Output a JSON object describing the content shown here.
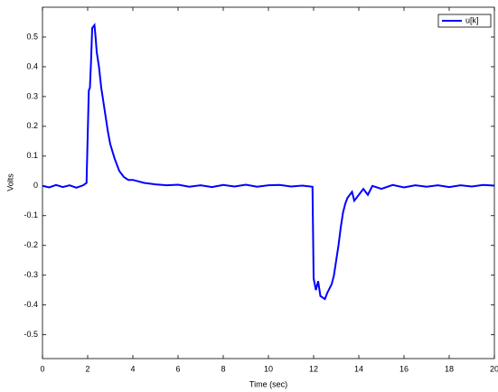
{
  "chart_data": {
    "type": "line",
    "x_label": "Time (sec)",
    "y_label": "Volts",
    "x": [
      0,
      0.3,
      0.6,
      0.9,
      1.2,
      1.5,
      1.8,
      1.95,
      2.05,
      2.1,
      2.15,
      2.2,
      2.3,
      2.35,
      2.4,
      2.5,
      2.6,
      2.7,
      2.8,
      2.9,
      3.0,
      3.2,
      3.4,
      3.6,
      3.8,
      4.0,
      4.5,
      5.0,
      5.5,
      6.0,
      6.5,
      7.0,
      7.5,
      8.0,
      8.5,
      9.0,
      9.5,
      10.0,
      10.5,
      11.0,
      11.5,
      11.95,
      12.0,
      12.1,
      12.2,
      12.3,
      12.5,
      12.6,
      12.8,
      12.9,
      13.0,
      13.1,
      13.2,
      13.3,
      13.4,
      13.5,
      13.6,
      13.7,
      13.8,
      14.0,
      14.2,
      14.4,
      14.6,
      15.0,
      15.5,
      16.0,
      16.5,
      17.0,
      17.5,
      18.0,
      18.5,
      19.0,
      19.5,
      20.0
    ],
    "series": [
      {
        "name": "u[k]",
        "color": "#0000ff",
        "values": [
          0,
          -0.005,
          0.003,
          -0.004,
          0.002,
          -0.006,
          0.002,
          0.01,
          0.32,
          0.33,
          0.42,
          0.53,
          0.54,
          0.5,
          0.45,
          0.4,
          0.33,
          0.28,
          0.23,
          0.18,
          0.14,
          0.09,
          0.05,
          0.03,
          0.02,
          0.02,
          0.01,
          0.005,
          0.002,
          0.004,
          -0.003,
          0.002,
          -0.004,
          0.003,
          -0.002,
          0.004,
          -0.003,
          0.002,
          0.003,
          -0.002,
          0.001,
          -0.003,
          -0.31,
          -0.35,
          -0.32,
          -0.37,
          -0.38,
          -0.36,
          -0.33,
          -0.3,
          -0.25,
          -0.2,
          -0.14,
          -0.09,
          -0.06,
          -0.04,
          -0.03,
          -0.02,
          -0.05,
          -0.03,
          -0.01,
          -0.03,
          0.0,
          -0.01,
          0.003,
          -0.005,
          0.002,
          -0.003,
          0.002,
          -0.004,
          0.002,
          -0.002,
          0.003,
          0.001
        ]
      }
    ],
    "xlim": [
      0,
      20
    ],
    "xticks": [
      0,
      2,
      4,
      6,
      8,
      10,
      12,
      14,
      16,
      18,
      20
    ],
    "ylim": [
      -0.58,
      0.6
    ],
    "yticks": [
      -0.5,
      -0.4,
      -0.3,
      -0.2,
      -0.1,
      0,
      0.1,
      0.2,
      0.3,
      0.4,
      0.5
    ],
    "legend": "top-right"
  }
}
